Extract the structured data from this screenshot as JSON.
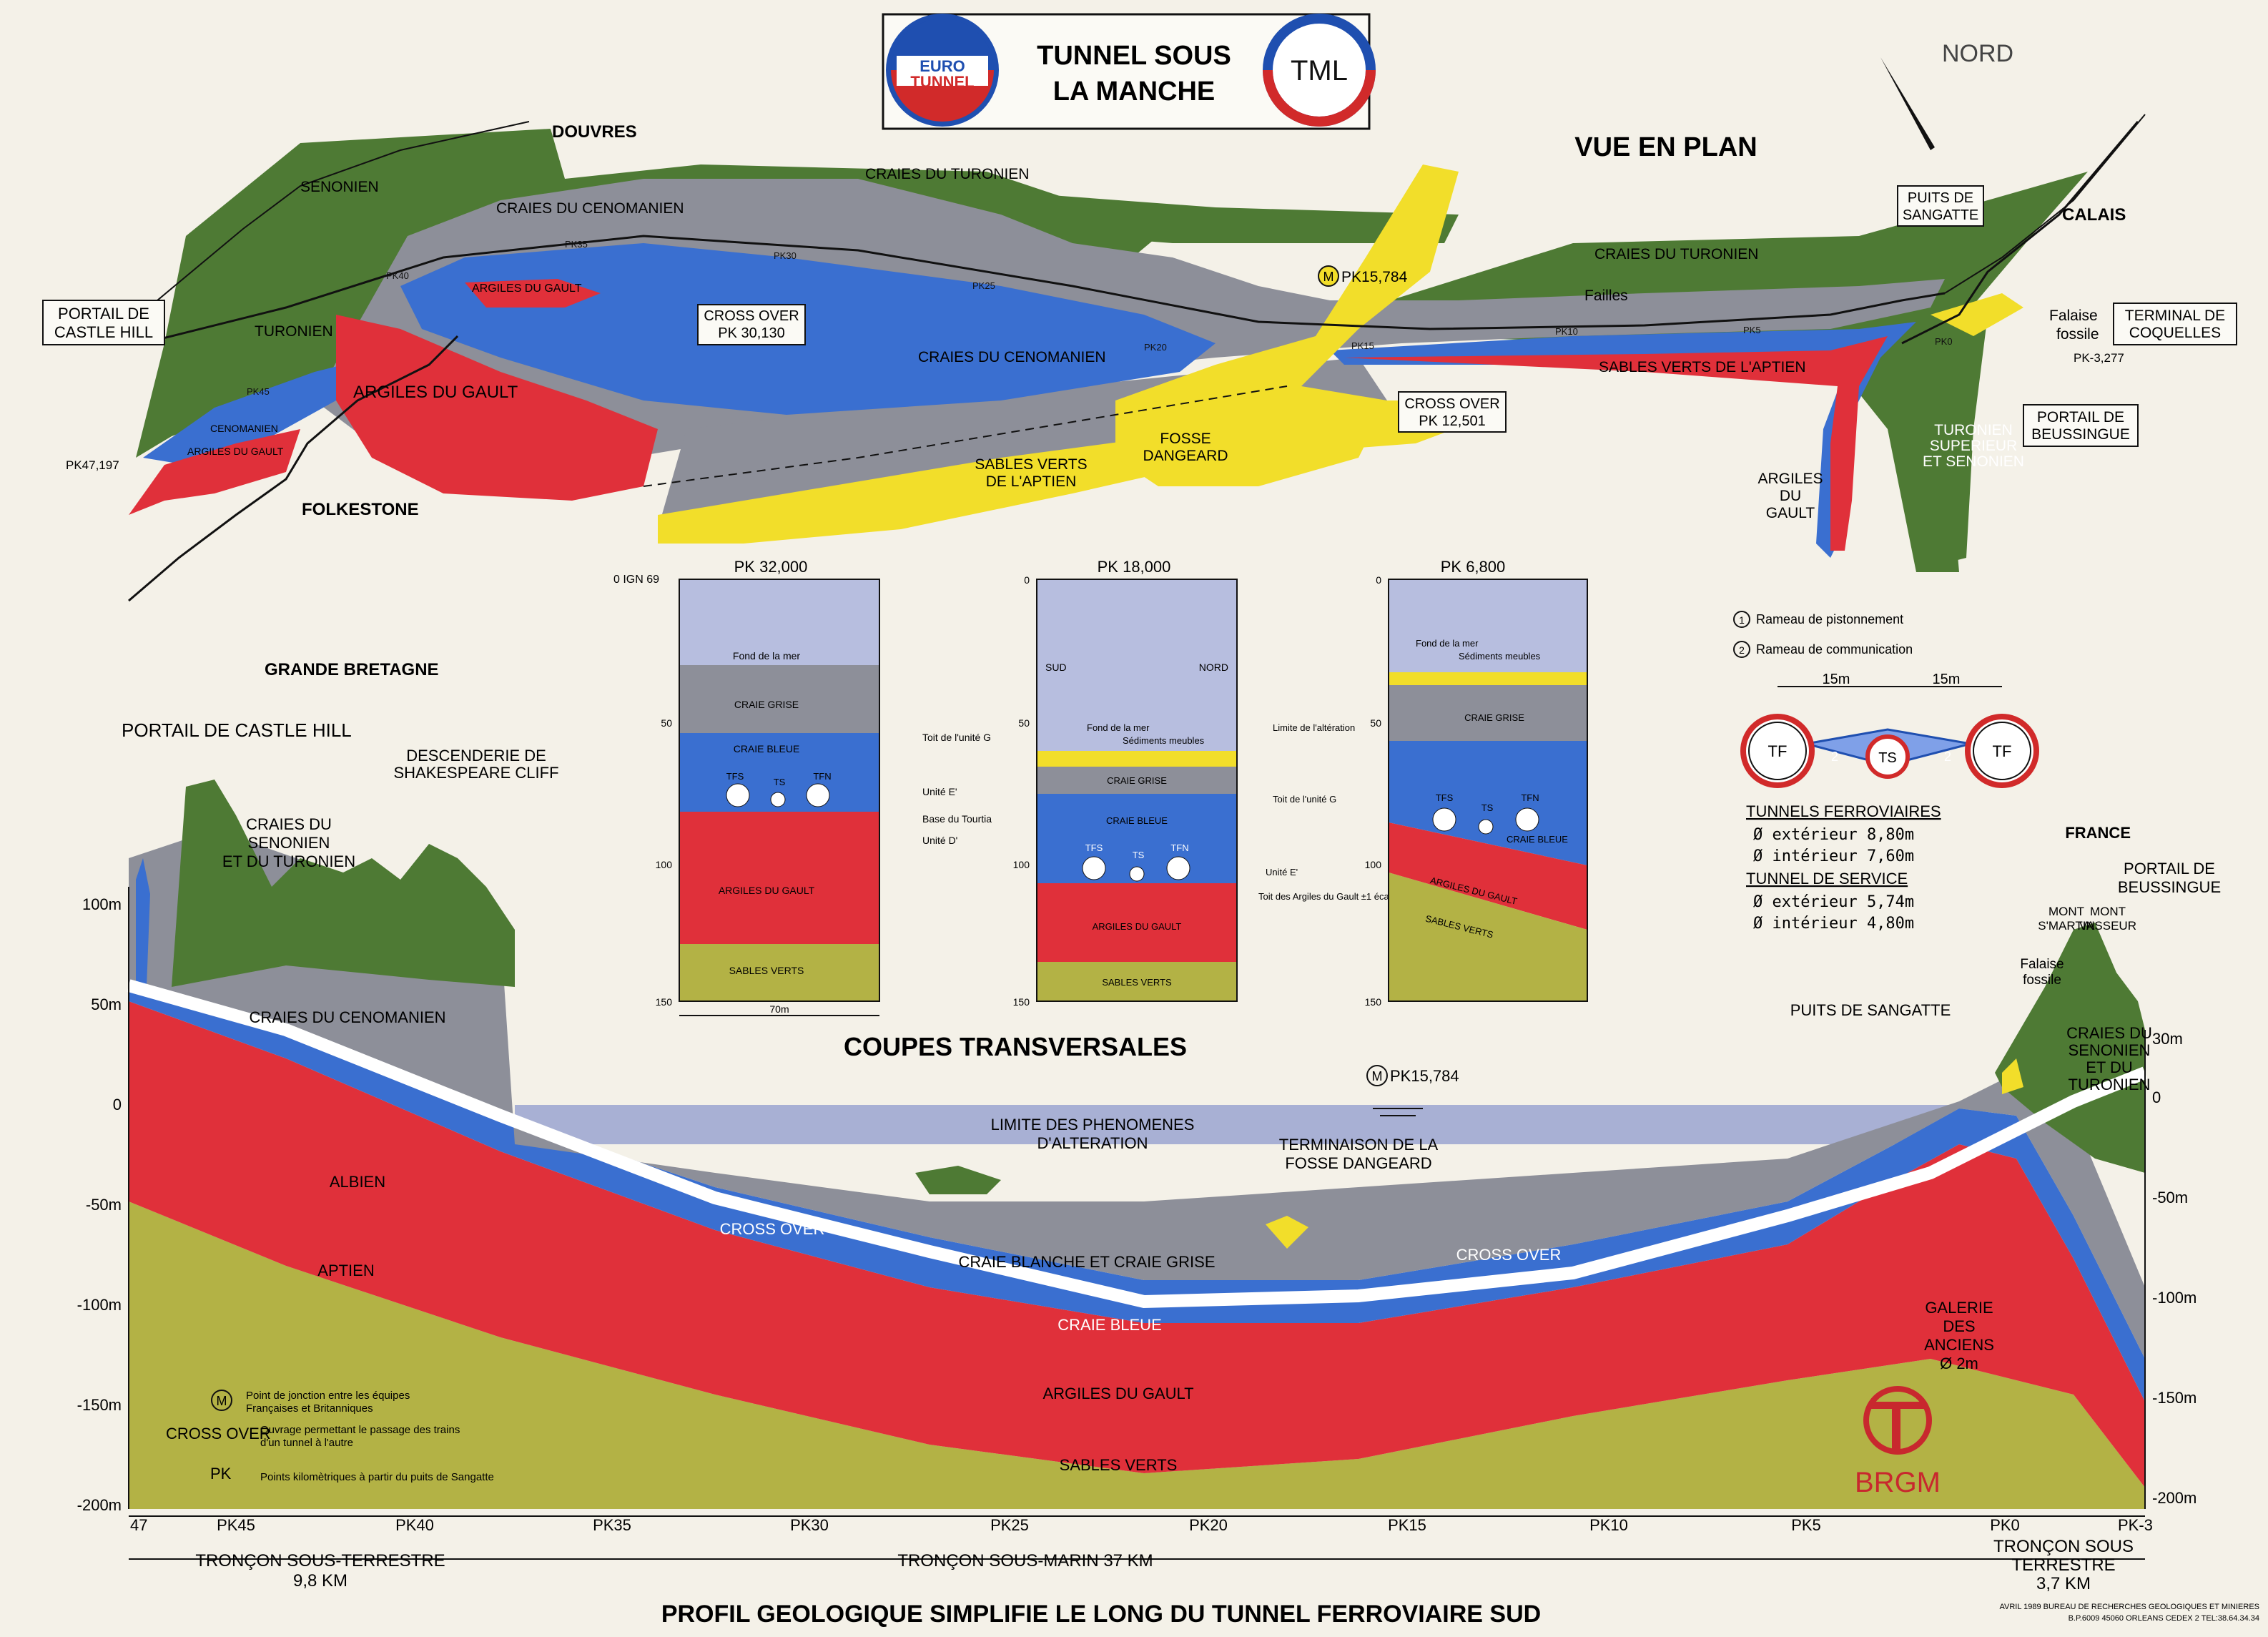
{
  "header": {
    "logo_left_top": "EURO",
    "logo_left_bottom": "TUNNEL",
    "title_line1": "TUNNEL SOUS",
    "title_line2": "LA MANCHE",
    "logo_right": "TML"
  },
  "plan": {
    "title": "VUE EN PLAN",
    "north": "NORD",
    "places": {
      "douvres": "DOUVRES",
      "folkestone": "FOLKESTONE",
      "calais": "CALAIS",
      "grande_bretagne": "GRANDE BRETAGNE"
    },
    "boxes": {
      "portail_castle_hill": [
        "PORTAIL DE",
        "CASTLE HILL"
      ],
      "cross_over_30": [
        "CROSS OVER",
        "PK 30,130"
      ],
      "cross_over_12": [
        "CROSS OVER",
        "PK 12,501"
      ],
      "puits_sangatte": [
        "PUITS DE",
        "SANGATTE"
      ],
      "terminal_coquelles": [
        "TERMINAL DE",
        "COQUELLES"
      ],
      "portail_beussingue": [
        "PORTAIL DE",
        "BEUSSINGUE"
      ]
    },
    "labels": {
      "senonien": "SENONIEN",
      "turonien": "TURONIEN",
      "craies_turonien_1": "CRAIES DU TURONIEN",
      "craies_turonien_2": "CRAIES DU TURONIEN",
      "craies_cenomanien_1": "CRAIES DU CENOMANIEN",
      "craies_cenomanien_2": "CRAIES DU CENOMANIEN",
      "argiles_gault_1": "ARGILES DU GAULT",
      "argiles_gault_2": "ARGILES DU GAULT",
      "argiles_gault_small": "ARGILES DU GAULT",
      "cenomanien_small": "CENOMANIEN",
      "fosse_dangeard": [
        "FOSSE",
        "DANGEARD"
      ],
      "sables_verts_1": [
        "SABLES VERTS",
        "DE L'APTIEN"
      ],
      "sables_verts_2": "SABLES VERTS DE L'APTIEN",
      "argiles_du_gault_fr": [
        "ARGILES",
        "DU",
        "GAULT"
      ],
      "turonien_sup": [
        "TURONIEN",
        "SUPERIEUR",
        "ET SENONIEN"
      ],
      "failles": "Failles",
      "falaise_fossile": [
        "Falaise",
        "fossile"
      ],
      "pk15784": "PK15,784",
      "pk47197": "PK47,197",
      "pk_minus": "PK-3,277"
    },
    "pk_small": [
      "PK45",
      "PK40",
      "PK35",
      "PK30",
      "PK25",
      "PK20",
      "PK15",
      "PK10",
      "PK5",
      "PK0"
    ]
  },
  "coupes": {
    "title": "COUPES TRANSVERSALES",
    "ign": "0 IGN 69",
    "sections": [
      {
        "pk": "PK 32,000",
        "ticks": [
          "50",
          "100",
          "150"
        ],
        "layers": [
          "Fond de la mer",
          "CRAIE GRISE",
          "CRAIE BLEUE",
          "ARGILES DU GAULT",
          "SABLES VERTS"
        ],
        "tunnels": [
          "TFS",
          "TS",
          "TFN"
        ],
        "scale": "70m",
        "annotations": [
          "Toit de l'unité G",
          "Unité E'",
          "Base du Tourtia",
          "Unité D'"
        ]
      },
      {
        "pk": "PK 18,000",
        "ticks": [
          "0",
          "50",
          "100",
          "150"
        ],
        "sides": [
          "SUD",
          "NORD"
        ],
        "layers": [
          "Fond de la mer",
          "Sédiments meubles",
          "CRAIE GRISE",
          "CRAIE BLEUE",
          "ARGILES DU GAULT",
          "SABLES VERTS"
        ],
        "tunnels": [
          "TFS",
          "TS",
          "TFN"
        ],
        "annotations": [
          "Limite de l'altération",
          "Toit de l'unité G",
          "Unité E'",
          "Toit des Argiles du Gault ±1 écart_type"
        ]
      },
      {
        "pk": "PK 6,800",
        "ticks": [
          "0",
          "50",
          "100",
          "150"
        ],
        "layers": [
          "Fond de la mer",
          "Sédiments meubles",
          "CRAIE GRISE",
          "CRAIE BLEUE",
          "ARGILES DU GAULT",
          "SABLES VERTS"
        ],
        "tunnels": [
          "TFS",
          "TS",
          "TFN"
        ]
      }
    ]
  },
  "legend_tunnels": {
    "rameau1": "Rameau de pistonnement",
    "rameau2": "Rameau de communication",
    "spacing": "15m",
    "tf": "TF",
    "ts": "TS",
    "n1": "1",
    "n2": "2",
    "ferro_title": "TUNNELS FERROVIAIRES",
    "ferro_ext": "Ø extérieur 8,80m",
    "ferro_int": "Ø intérieur 7,60m",
    "service_title": "TUNNEL DE SERVICE",
    "service_ext": "Ø extérieur 5,74m",
    "service_int": "Ø intérieur 4,80m"
  },
  "profile": {
    "title": "PROFIL GEOLOGIQUE SIMPLIFIE LE LONG DU TUNNEL FERROVIAIRE SUD",
    "left_axis": [
      "100m",
      "50m",
      "0",
      "-50m",
      "-100m",
      "-150m",
      "-200m"
    ],
    "right_axis": [
      "30m",
      "0",
      "-50m",
      "-100m",
      "-150m",
      "-200m"
    ],
    "pk_axis": [
      "47",
      "PK45",
      "PK40",
      "PK35",
      "PK30",
      "PK25",
      "PK20",
      "PK15",
      "PK10",
      "PK5",
      "PK0",
      "PK-3"
    ],
    "labels": {
      "portail_castle": "PORTAIL DE CASTLE HILL",
      "descenderie": [
        "DESCENDERIE DE",
        "SHAKESPEARE CLIFF"
      ],
      "craies_senonien": [
        "CRAIES DU",
        "SENONIEN",
        "ET DU TURONIEN"
      ],
      "craies_cenomanien": "CRAIES DU CENOMANIEN",
      "albien": "ALBIEN",
      "aptien": "APTIEN",
      "cross_over": "CROSS OVER",
      "limite": [
        "LIMITE DES PHENOMENES",
        "D'ALTERATION"
      ],
      "terminaison": [
        "TERMINAISON DE LA",
        "FOSSE DANGEARD"
      ],
      "pk15": "PK15,784",
      "craie_blanche": "CRAIE BLANCHE ET CRAIE GRISE",
      "craie_bleue": "CRAIE BLEUE",
      "argiles_gault": "ARGILES DU GAULT",
      "sables_verts": "SABLES VERTS",
      "france": "FRANCE",
      "portail_beussingue": [
        "PORTAIL DE",
        "BEUSSINGUE"
      ],
      "mont_st_martin": [
        "MONT",
        "S'MARTIN"
      ],
      "mont_vasseur": [
        "MONT",
        "VASSEUR"
      ],
      "falaise": [
        "Falaise",
        "fossile"
      ],
      "puits": "PUITS DE SANGATTE",
      "craies_fr": [
        "CRAIES DU",
        "SENONIEN",
        "ET DU",
        "TURONIEN"
      ],
      "galerie": [
        "GALERIE",
        "DES",
        "ANCIENS",
        "Ø 2m"
      ]
    },
    "legend": {
      "m_text": [
        "Point de jonction entre les équipes",
        "Françaises et Britanniques"
      ],
      "cross_label": "CROSS OVER",
      "cross_text": [
        "Ouvrage permettant le passage des trains",
        "d'un tunnel à l'autre"
      ],
      "pk_label": "PK",
      "pk_text": "Points kilomètriques à partir du puits de Sangatte"
    },
    "troncons": {
      "terrestre": "TRONÇON SOUS-TERRESTRE",
      "terrestre_km": "9,8 KM",
      "marin": "TRONÇON SOUS-MARIN 37 KM",
      "fr": [
        "TRONÇON SOUS",
        "TERRESTRE"
      ],
      "fr_km": "3,7 KM"
    }
  },
  "brgm": {
    "name": "BRGM",
    "credit": [
      "AVRIL 1989 BUREAU DE RECHERCHES GEOLOGIQUES ET MINIERES",
      "B.P.6009 45060 ORLEANS CEDEX 2 TEL:38.64.34.34"
    ]
  },
  "colors": {
    "senonien": "#4e7a34",
    "cenomanien": "#8d8f99",
    "bleue": "#3a6fd0",
    "gault": "#e0303a",
    "sables": "#b3b245",
    "yellow": "#f2de2a",
    "sea": "#a8b0d4",
    "tunnel": "#ffffff"
  }
}
